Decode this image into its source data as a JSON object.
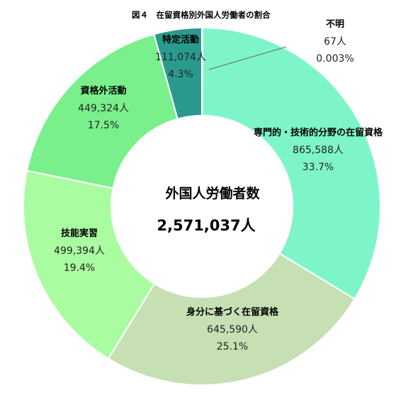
{
  "chart_data": {
    "type": "pie",
    "title": "図４　在留資格別外国人労働者の割合",
    "center_title": "外国人労働者数",
    "center_total": "2,571,037人",
    "start_at": "top",
    "direction": "clockwise",
    "slices": [
      {
        "name": "専門的・技術的分野の在留資格",
        "count": "865,588人",
        "percent": "33.7%",
        "value": 865588,
        "color": "#7ef5c8"
      },
      {
        "name": "身分に基づく在留資格",
        "count": "645,590人",
        "percent": "25.1%",
        "value": 645590,
        "color": "#c6e0b4"
      },
      {
        "name": "技能実習",
        "count": "499,394人",
        "percent": "19.4%",
        "value": 499394,
        "color": "#aafca0"
      },
      {
        "name": "資格外活動",
        "count": "449,324人",
        "percent": "17.5%",
        "value": 449324,
        "color": "#7af08c"
      },
      {
        "name": "特定活動",
        "count": "111,074人",
        "percent": "4.3%",
        "value": 111074,
        "color": "#2a9a8e"
      },
      {
        "name": "不明",
        "count": "67人",
        "percent": "0.003%",
        "value": 67,
        "color": "#7ef5c8"
      }
    ]
  }
}
